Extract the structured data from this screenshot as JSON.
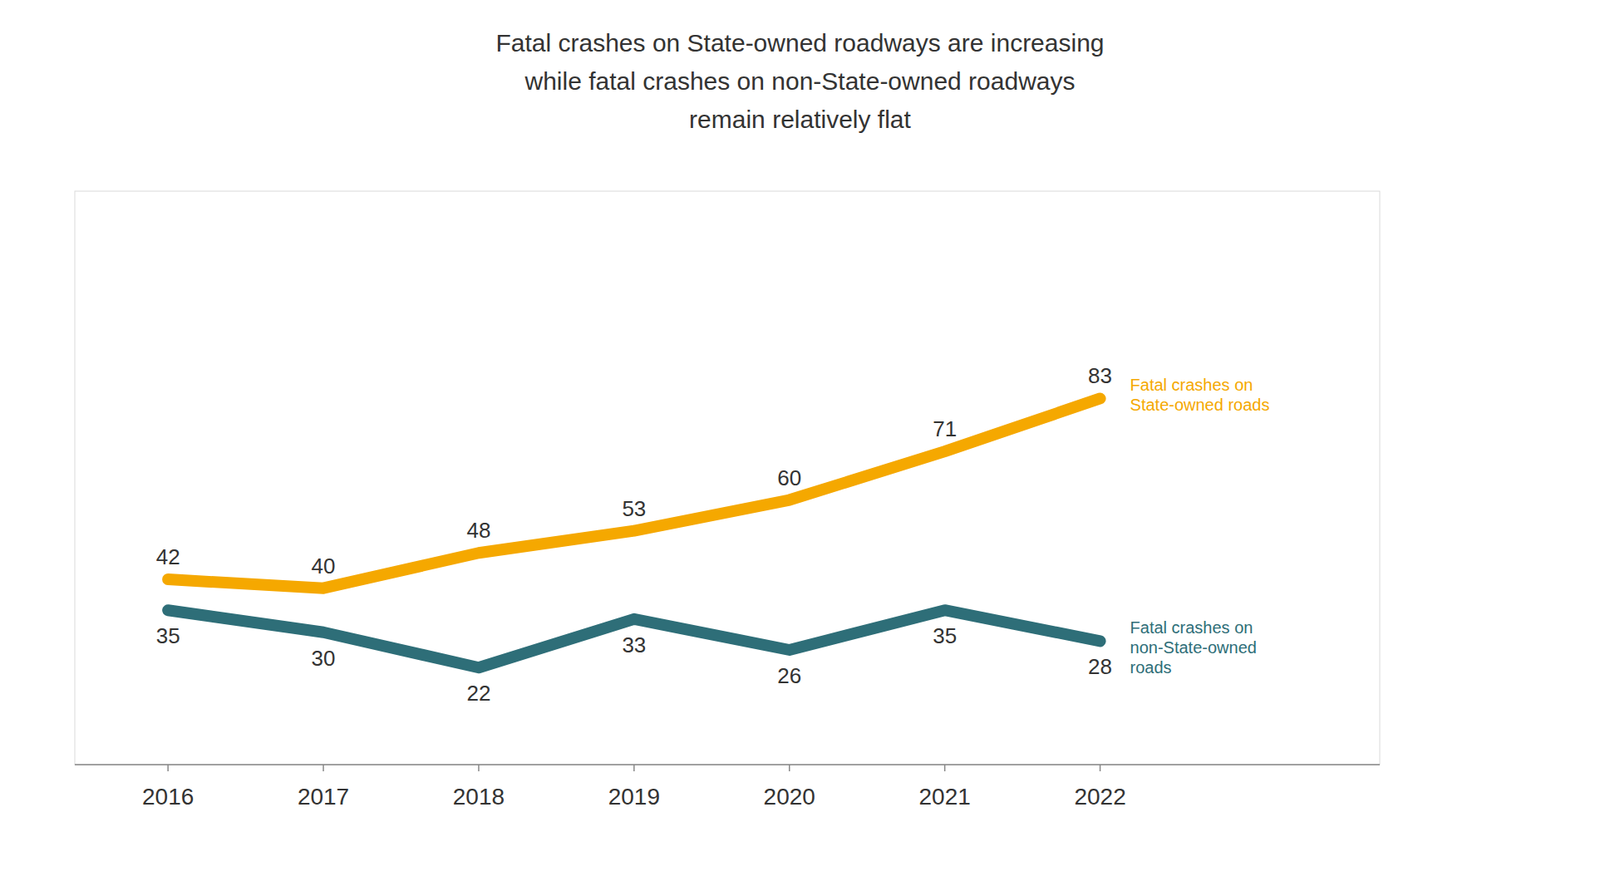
{
  "chart_data": {
    "type": "line",
    "title": "Fatal crashes on State-owned roadways are increasing\nwhile fatal crashes on non-State-owned roadways\nremain relatively flat",
    "x": [
      2016,
      2017,
      2018,
      2019,
      2020,
      2021,
      2022
    ],
    "series": [
      {
        "name": "Fatal crashes on\nState-owned roads",
        "color": "#F5A800",
        "values": [
          42,
          40,
          48,
          53,
          60,
          71,
          83
        ]
      },
      {
        "name": "Fatal crashes on\nnon-State-owned\nroads",
        "color": "#2E6E78",
        "values": [
          35,
          30,
          22,
          33,
          26,
          35,
          28
        ]
      }
    ],
    "xlim": [
      2015.4,
      2023.8
    ],
    "xticks": [
      2016,
      2017,
      2018,
      2019,
      2020,
      2021,
      2022
    ],
    "ylim": [
      0,
      130
    ],
    "grid": false,
    "data_labels": true,
    "tick_labels": "x"
  }
}
